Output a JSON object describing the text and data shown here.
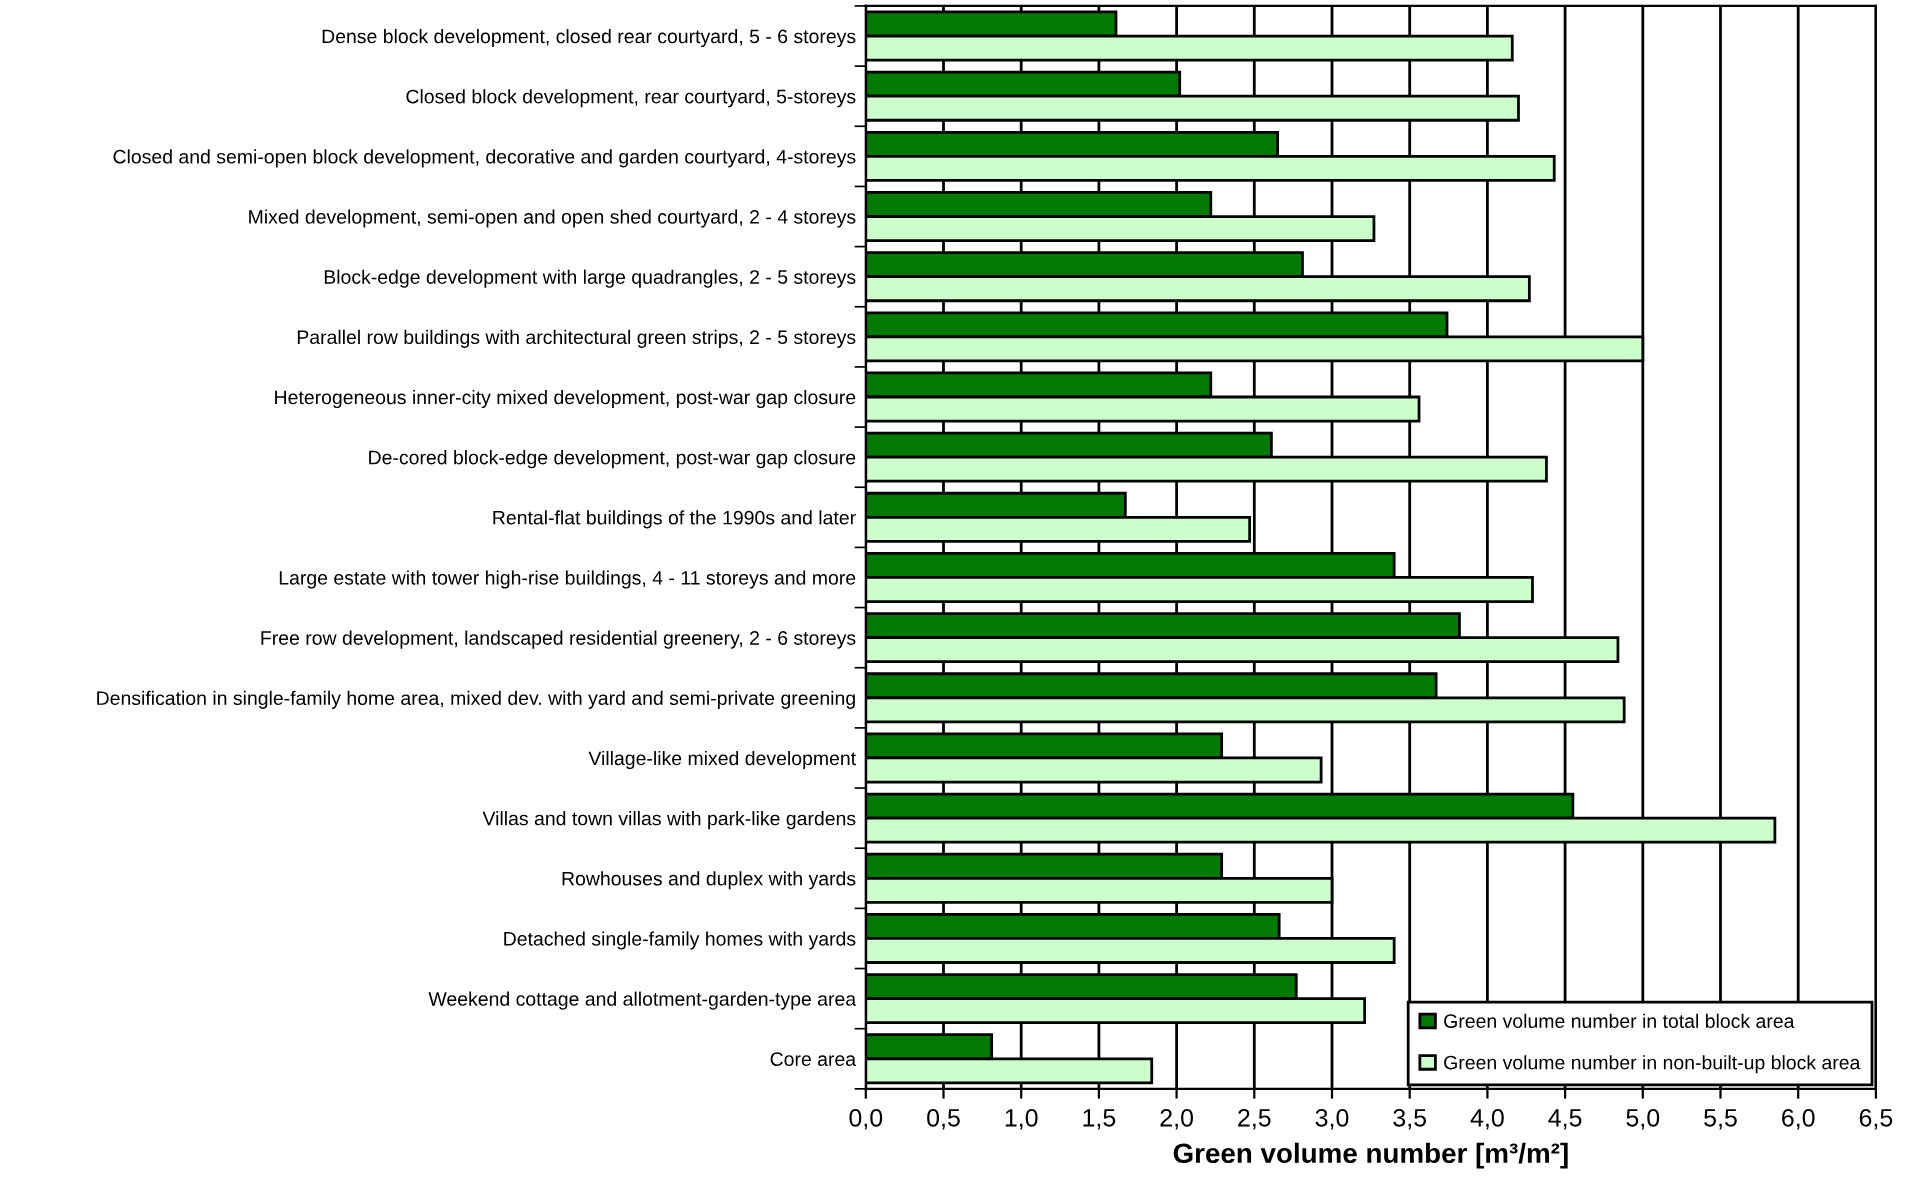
{
  "chart_data": {
    "type": "bar",
    "orientation": "horizontal",
    "xlabel": "Green volume number [m³/m²]",
    "categories": [
      "Dense block development, closed rear courtyard, 5 - 6 storeys",
      "Closed block development, rear courtyard, 5-storeys",
      "Closed and semi-open block development, decorative and garden courtyard, 4-storeys",
      "Mixed development, semi-open and open shed courtyard, 2 - 4 storeys",
      "Block-edge development with large quadrangles, 2 - 5 storeys",
      "Parallel row buildings with architectural green strips, 2 - 5 storeys",
      "Heterogeneous inner-city mixed development, post-war gap closure",
      "De-cored block-edge development, post-war gap closure",
      "Rental-flat buildings of the 1990s and later",
      "Large estate with tower high-rise buildings, 4 - 11 storeys and more",
      "Free row development, landscaped residential greenery, 2 - 6 storeys",
      "Densification in single-family home area, mixed dev. with yard and semi-private greening",
      "Village-like mixed development",
      "Villas and town villas with park-like gardens",
      "Rowhouses and duplex with yards",
      "Detached single-family homes with yards",
      "Weekend cottage and allotment-garden-type area",
      "Core area"
    ],
    "series": [
      {
        "name": "Green volume number in total block area",
        "color": "#007a00",
        "values": [
          1.61,
          2.02,
          2.65,
          2.22,
          2.81,
          3.74,
          2.22,
          2.61,
          1.67,
          3.4,
          3.82,
          3.67,
          2.29,
          4.55,
          2.29,
          2.66,
          2.77,
          0.81
        ]
      },
      {
        "name": "Green volume number in non-built-up block area",
        "color": "#ccffcc",
        "values": [
          4.16,
          4.2,
          4.43,
          3.27,
          4.27,
          5.0,
          3.56,
          4.38,
          2.47,
          4.29,
          4.84,
          4.88,
          2.93,
          5.85,
          3.0,
          3.4,
          3.21,
          1.84
        ]
      }
    ],
    "xlim": [
      0,
      6.5
    ],
    "xticks": [
      {
        "value": 0,
        "label": "0,0"
      },
      {
        "value": 0.5,
        "label": "0,5"
      },
      {
        "value": 1,
        "label": "1,0"
      },
      {
        "value": 1.5,
        "label": "1,5"
      },
      {
        "value": 2,
        "label": "2,0"
      },
      {
        "value": 2.5,
        "label": "2,5"
      },
      {
        "value": 3,
        "label": "3,0"
      },
      {
        "value": 3.5,
        "label": "3,5"
      },
      {
        "value": 4,
        "label": "4,0"
      },
      {
        "value": 4.5,
        "label": "4,5"
      },
      {
        "value": 5,
        "label": "5,0"
      },
      {
        "value": 5.5,
        "label": "5,5"
      },
      {
        "value": 6,
        "label": "6,0"
      },
      {
        "value": 6.5,
        "label": "6,5"
      }
    ],
    "grid": "x",
    "legend": "bottom right"
  }
}
